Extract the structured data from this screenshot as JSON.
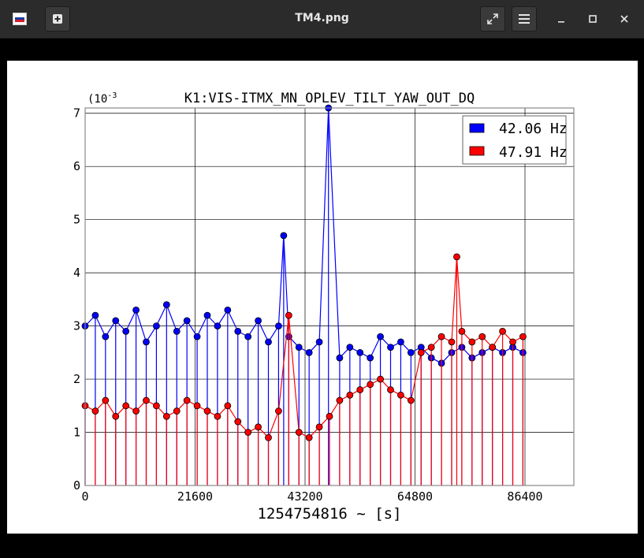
{
  "window": {
    "title": "TM4.png",
    "icons": {
      "app": "image-viewer-app-icon",
      "new_tab": "plus-square-icon",
      "fullscreen": "expand-arrows-icon",
      "menu": "hamburger-menu-icon",
      "minimize": "minimize-icon",
      "maximize": "maximize-icon",
      "close": "close-icon"
    }
  },
  "chart_data": {
    "type": "scatter",
    "title": "K1:VIS-ITMX_MN_OPLEV_TILT_YAW_OUT_DQ",
    "xlabel": "1254754816 ~ [s]",
    "ylabel": "",
    "y_scale_label": "(10",
    "y_scale_exponent": "-3",
    "xlim": [
      0,
      96000
    ],
    "ylim": [
      0,
      7.1
    ],
    "xticks": [
      0,
      21600,
      43200,
      64800,
      86400
    ],
    "xtick_labels": [
      "0",
      "21600",
      "43200",
      "64800",
      "86400"
    ],
    "yticks": [
      0,
      1,
      2,
      3,
      4,
      5,
      6,
      7
    ],
    "ytick_labels": [
      "0",
      "1",
      "2",
      "3",
      "4",
      "5",
      "6",
      "7"
    ],
    "grid": true,
    "legend_position": "top-right",
    "marker": "circle with stems",
    "series": [
      {
        "name": "42.06 Hz",
        "color": "#0000ff",
        "x": [
          0,
          2000,
          4000,
          6000,
          8000,
          10000,
          12000,
          14000,
          16000,
          18000,
          20000,
          22000,
          24000,
          26000,
          28000,
          30000,
          32000,
          34000,
          36000,
          38000,
          39000,
          40000,
          42000,
          44000,
          46000,
          47800,
          50000,
          52000,
          54000,
          56000,
          58000,
          60000,
          62000,
          64000,
          66000,
          68000,
          70000,
          72000,
          74000,
          76000,
          78000,
          80000,
          82000,
          84000,
          86000
        ],
        "y": [
          3.0,
          3.2,
          2.8,
          3.1,
          2.9,
          3.3,
          2.7,
          3.0,
          3.4,
          2.9,
          3.1,
          2.8,
          3.2,
          3.0,
          3.3,
          2.9,
          2.8,
          3.1,
          2.7,
          3.0,
          4.7,
          2.8,
          2.6,
          2.5,
          2.7,
          7.1,
          2.4,
          2.6,
          2.5,
          2.4,
          2.8,
          2.6,
          2.7,
          2.5,
          2.6,
          2.4,
          2.3,
          2.5,
          2.6,
          2.4,
          2.5,
          2.6,
          2.5,
          2.6,
          2.5
        ]
      },
      {
        "name": "47.91 Hz",
        "color": "#ff0000",
        "x": [
          0,
          2000,
          4000,
          6000,
          8000,
          10000,
          12000,
          14000,
          16000,
          18000,
          20000,
          22000,
          24000,
          26000,
          28000,
          30000,
          32000,
          34000,
          36000,
          38000,
          40000,
          42000,
          44000,
          46000,
          48000,
          50000,
          52000,
          54000,
          56000,
          58000,
          60000,
          62000,
          64000,
          66000,
          68000,
          70000,
          72000,
          73000,
          74000,
          76000,
          78000,
          80000,
          82000,
          84000,
          86000
        ],
        "y": [
          1.5,
          1.4,
          1.6,
          1.3,
          1.5,
          1.4,
          1.6,
          1.5,
          1.3,
          1.4,
          1.6,
          1.5,
          1.4,
          1.3,
          1.5,
          1.2,
          1.0,
          1.1,
          0.9,
          1.4,
          3.2,
          1.0,
          0.9,
          1.1,
          1.3,
          1.6,
          1.7,
          1.8,
          1.9,
          2.0,
          1.8,
          1.7,
          1.6,
          2.5,
          2.6,
          2.8,
          2.7,
          4.3,
          2.9,
          2.7,
          2.8,
          2.6,
          2.9,
          2.7,
          2.8
        ]
      }
    ]
  }
}
